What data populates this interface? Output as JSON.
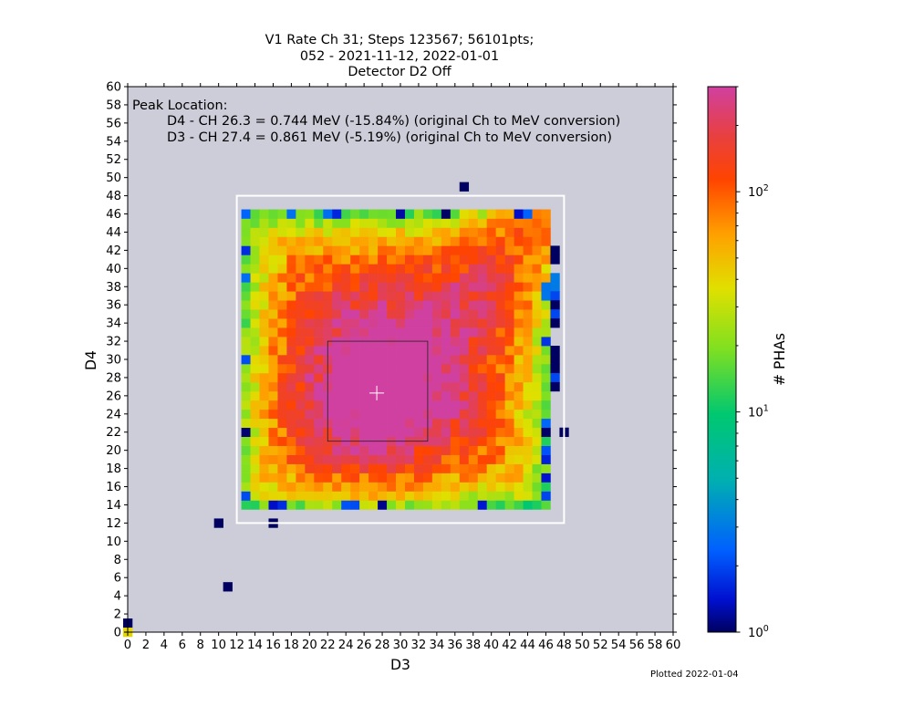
{
  "chart_data": {
    "type": "heatmap",
    "title": [
      "V1 Rate Ch 31; Steps 123567; 56101pts;",
      "052 - 2021-11-12, 2022-01-01",
      "Detector D2 Off"
    ],
    "xlabel": "D3",
    "ylabel": "D4",
    "xlim": [
      0,
      60
    ],
    "ylim": [
      0,
      60
    ],
    "x_ticks": [
      0,
      2,
      4,
      6,
      8,
      10,
      12,
      14,
      16,
      18,
      20,
      22,
      24,
      26,
      28,
      30,
      32,
      34,
      36,
      38,
      40,
      42,
      44,
      46,
      48,
      50,
      52,
      54,
      56,
      58,
      60
    ],
    "y_ticks": [
      0,
      2,
      4,
      6,
      8,
      10,
      12,
      14,
      16,
      18,
      20,
      22,
      24,
      26,
      28,
      30,
      32,
      34,
      36,
      38,
      40,
      42,
      44,
      46,
      48,
      50,
      52,
      54,
      56,
      58,
      60
    ],
    "background_color": "#cccdd9",
    "colorscale": "log",
    "colorbar": {
      "label": "# PHAs",
      "range": [
        1,
        300
      ],
      "tick_labels": [
        {
          "value": 1,
          "base": "10",
          "exp": "0"
        },
        {
          "value": 10,
          "base": "10",
          "exp": "1"
        },
        {
          "value": 100,
          "base": "10",
          "exp": "2"
        }
      ]
    },
    "annotation": {
      "heading": "Peak Location:",
      "lines": [
        "D4 - CH 26.3 = 0.744 MeV (-15.84%) (original Ch to MeV conversion)",
        "D3 - CH 27.4 = 0.861 MeV (-5.19%) (original Ch to MeV conversion)"
      ]
    },
    "peak": {
      "x": 27.4,
      "y": 26.3
    },
    "outer_box": {
      "x0": 12,
      "x1": 48,
      "y0": 12,
      "y1": 48,
      "color": "#ffffff"
    },
    "inner_box": {
      "x0": 22,
      "x1": 33,
      "y0": 21,
      "y1": 32,
      "color": "#222222"
    },
    "grid_block": {
      "x0": 12.5,
      "x1": 46.5,
      "y0": 13.5,
      "y1": 46.5
    },
    "sparse_cells": [
      {
        "x": 37,
        "y": 49,
        "v": 1
      },
      {
        "x": 10,
        "y": 12,
        "v": 1
      },
      {
        "x": 16,
        "y": 12,
        "v": 1
      },
      {
        "x": 11,
        "y": 5,
        "v": 1
      },
      {
        "x": 0,
        "y": 1,
        "v": 1
      },
      {
        "x": 0,
        "y": 0,
        "v": 40
      },
      {
        "x": 48,
        "y": 22,
        "v": 1
      },
      {
        "x": 47,
        "y": 42,
        "v": 1
      },
      {
        "x": 47,
        "y": 41,
        "v": 1
      },
      {
        "x": 47,
        "y": 39,
        "v": 3
      },
      {
        "x": 47,
        "y": 38,
        "v": 3
      },
      {
        "x": 47,
        "y": 37,
        "v": 2
      },
      {
        "x": 47,
        "y": 36,
        "v": 1
      },
      {
        "x": 47,
        "y": 35,
        "v": 2
      },
      {
        "x": 47,
        "y": 34,
        "v": 1
      },
      {
        "x": 47,
        "y": 31,
        "v": 1
      },
      {
        "x": 47,
        "y": 30,
        "v": 1
      },
      {
        "x": 47,
        "y": 29,
        "v": 1
      },
      {
        "x": 47,
        "y": 28,
        "v": 2
      },
      {
        "x": 47,
        "y": 27,
        "v": 1
      }
    ],
    "block_model": {
      "center": {
        "x": 27,
        "y": 26
      },
      "peak_value": 260,
      "diagonal_ridge_value": 150,
      "edge_value": 6,
      "corner_value": 2
    }
  },
  "footer": {
    "plotted": "Plotted 2022-01-04"
  }
}
